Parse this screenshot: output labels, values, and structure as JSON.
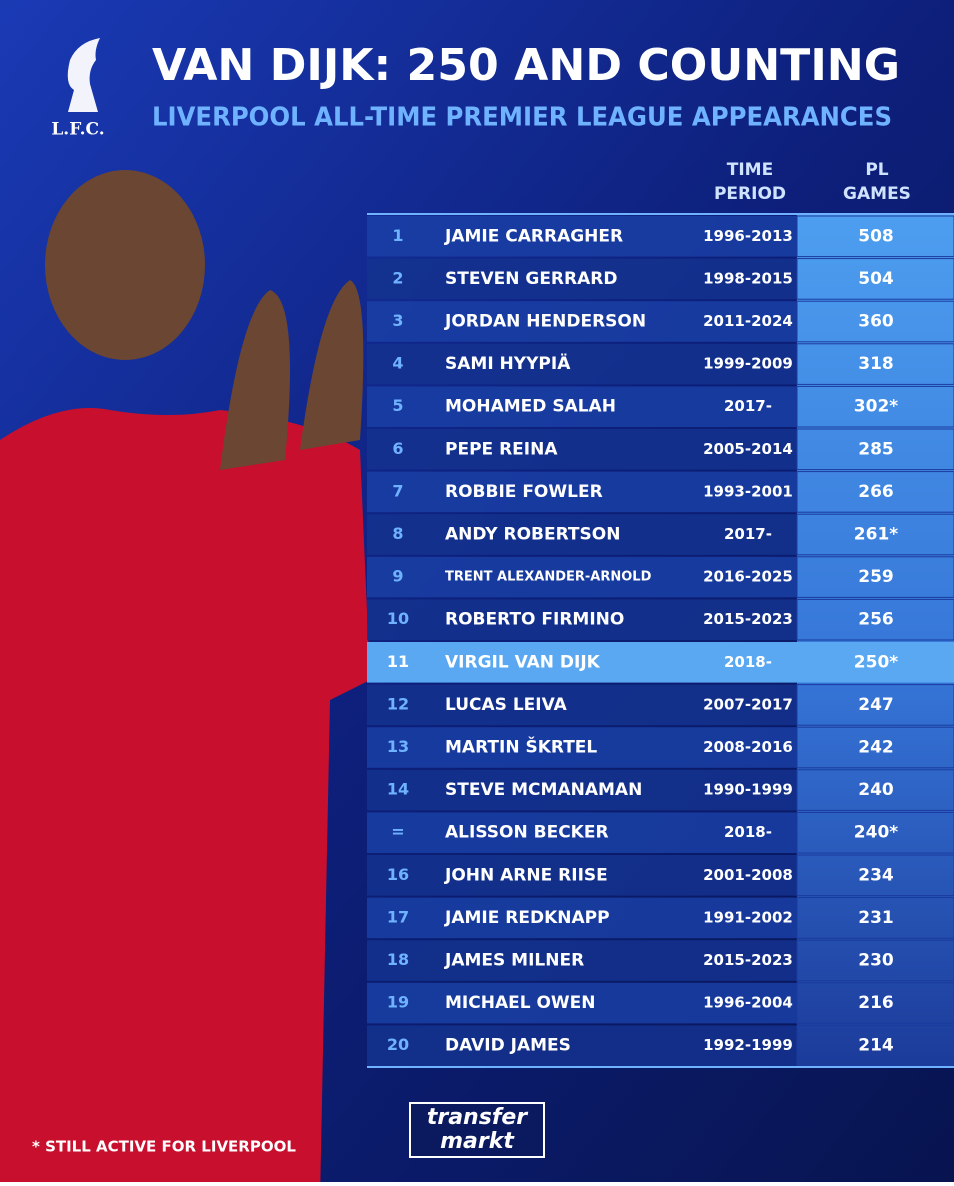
{
  "header": {
    "logo": "L.F.C.",
    "title": "VAN DIJK: 250 AND COUNTING",
    "subtitle": "LIVERPOOL ALL-TIME PREMIER LEAGUE APPEARANCES"
  },
  "table": {
    "columns": {
      "period": [
        "TIME",
        "PERIOD"
      ],
      "games": [
        "PL",
        "GAMES"
      ]
    },
    "rows": [
      [
        "1",
        "JAMIE CARRAGHER",
        "1996-2013",
        "508"
      ],
      [
        "2",
        "STEVEN GERRARD",
        "1998-2015",
        "504"
      ],
      [
        "3",
        "JORDAN HENDERSON",
        "2011-2024",
        "360"
      ],
      [
        "4",
        "SAMI HYYPIÄ",
        "1999-2009",
        "318"
      ],
      [
        "5",
        "MOHAMED SALAH",
        "2017-",
        "302*"
      ],
      [
        "6",
        "PEPE REINA",
        "2005-2014",
        "285"
      ],
      [
        "7",
        "ROBBIE FOWLER",
        "1993-2001",
        "266"
      ],
      [
        "8",
        "ANDY ROBERTSON",
        "2017-",
        "261*"
      ],
      [
        "9",
        "TRENT ALEXANDER-ARNOLD",
        "2016-2025",
        "259"
      ],
      [
        "10",
        "ROBERTO FIRMINO",
        "2015-2023",
        "256"
      ],
      [
        "11",
        "VIRGIL VAN DIJK",
        "2018-",
        "250*"
      ],
      [
        "12",
        "LUCAS LEIVA",
        "2007-2017",
        "247"
      ],
      [
        "13",
        "MARTIN ŠKRTEL",
        "2008-2016",
        "242"
      ],
      [
        "14",
        "STEVE MCMANAMAN",
        "1990-1999",
        "240"
      ],
      [
        "=",
        "ALISSON BECKER",
        "2018-",
        "240*"
      ],
      [
        "16",
        "JOHN ARNE RIISE",
        "2001-2008",
        "234"
      ],
      [
        "17",
        "JAMIE REDKNAPP",
        "1991-2002",
        "231"
      ],
      [
        "18",
        "JAMES MILNER",
        "2015-2023",
        "230"
      ],
      [
        "19",
        "MICHAEL OWEN",
        "1996-2004",
        "216"
      ],
      [
        "20",
        "DAVID JAMES",
        "1992-1999",
        "214"
      ]
    ]
  },
  "footnote": "* STILL ACTIVE FOR LIVERPOOL",
  "brand": [
    "transfer",
    "markt"
  ]
}
